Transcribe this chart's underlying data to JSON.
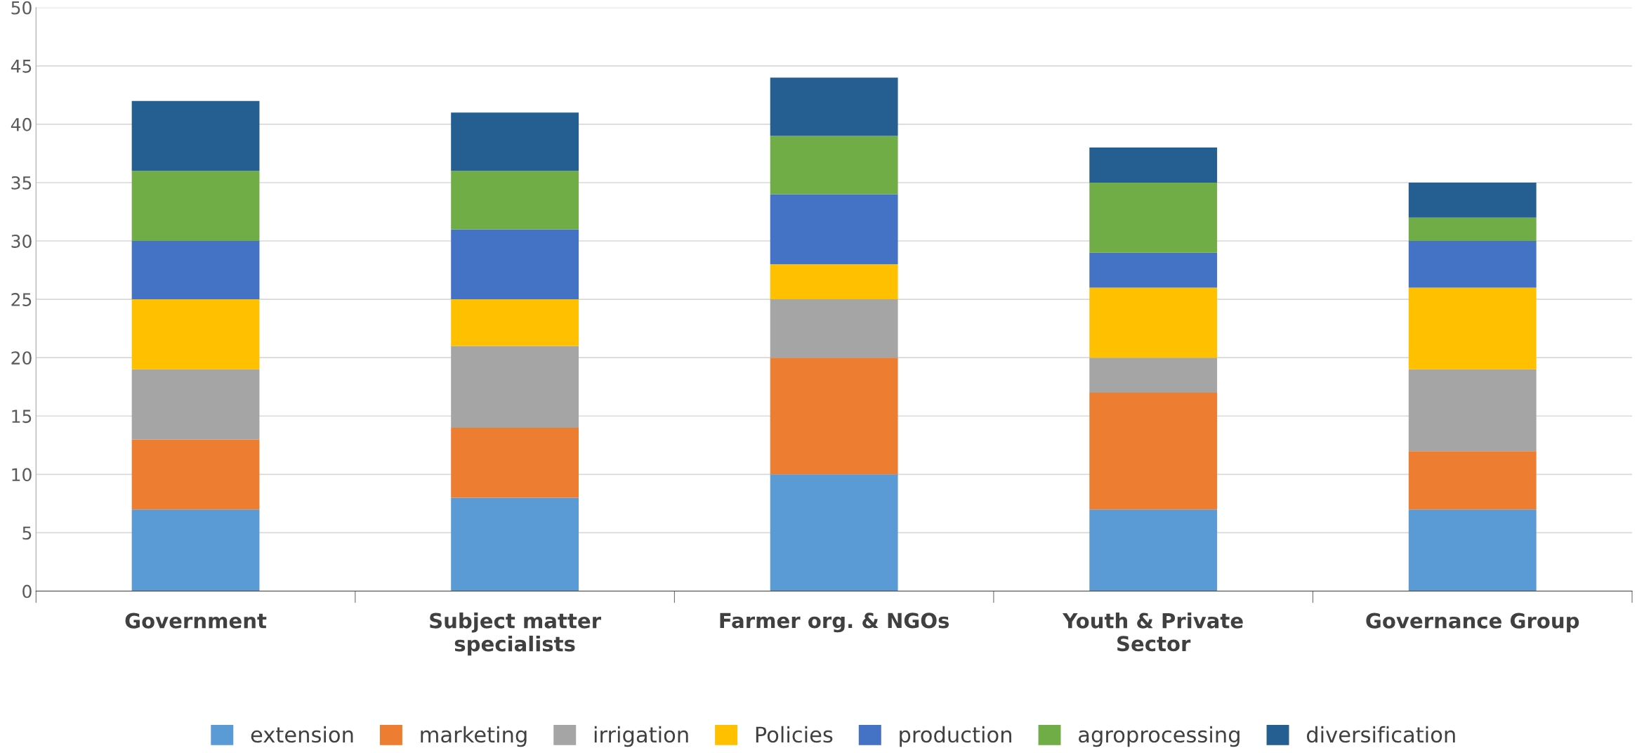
{
  "chart_data": {
    "type": "bar",
    "stacked": true,
    "categories": [
      "Government",
      "Subject matter\nspecialists",
      "Farmer org. & NGOs",
      "Youth & Private\nSector",
      "Governance Group"
    ],
    "series": [
      {
        "name": "extension",
        "color": "#5b9bd5",
        "values": [
          7,
          8,
          10,
          7,
          7
        ]
      },
      {
        "name": "marketing",
        "color": "#ed7d31",
        "values": [
          6,
          6,
          10,
          10,
          5
        ]
      },
      {
        "name": "irrigation",
        "color": "#a5a5a5",
        "values": [
          6,
          7,
          5,
          3,
          7
        ]
      },
      {
        "name": "Policies",
        "color": "#ffc000",
        "values": [
          6,
          4,
          3,
          6,
          7
        ]
      },
      {
        "name": "production",
        "color": "#4472c4",
        "values": [
          5,
          6,
          6,
          3,
          4
        ]
      },
      {
        "name": "agroprocessing",
        "color": "#70ad47",
        "values": [
          6,
          5,
          5,
          6,
          2
        ]
      },
      {
        "name": "diversification",
        "color": "#255e91",
        "values": [
          6,
          5,
          5,
          3,
          3
        ]
      }
    ],
    "ylim": [
      0,
      50
    ],
    "yticks": [
      0,
      5,
      10,
      15,
      20,
      25,
      30,
      35,
      40,
      45,
      50
    ],
    "grid": "y",
    "legend": "bottom"
  }
}
